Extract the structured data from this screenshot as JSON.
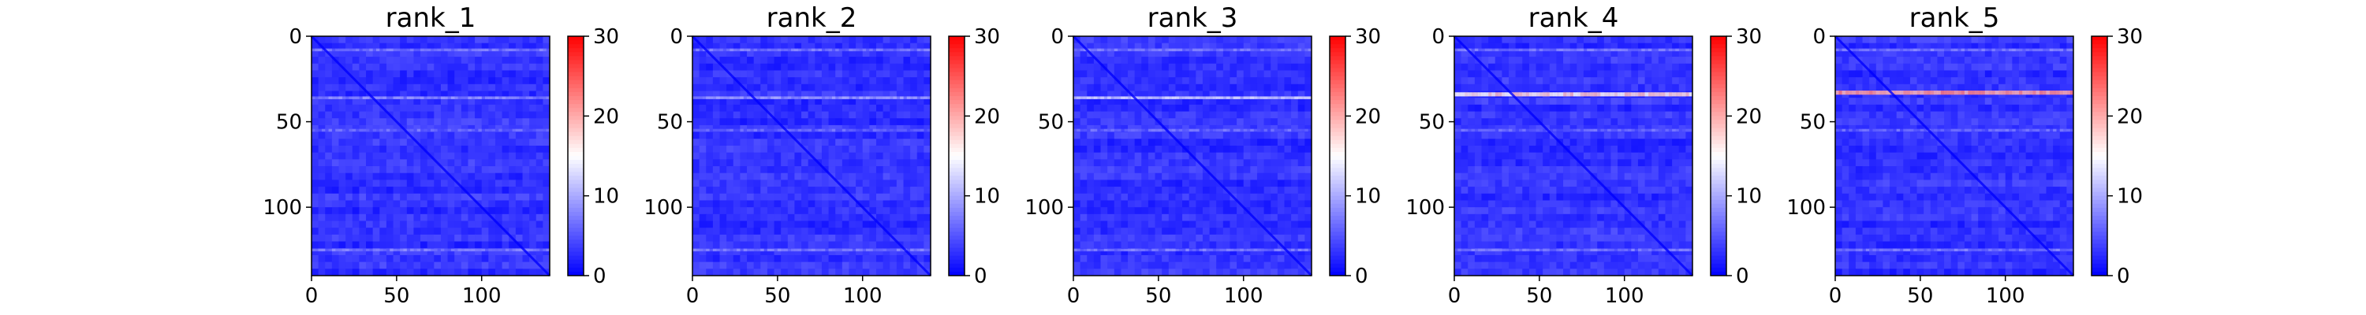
{
  "chart_data": [
    {
      "type": "heatmap",
      "title": "rank_1",
      "size": 140,
      "xlim": [
        0,
        140
      ],
      "ylim": [
        140,
        0
      ],
      "xticks": [
        0,
        50,
        100
      ],
      "yticks": [
        0,
        50,
        100
      ],
      "colorbar": {
        "min": 0,
        "max": 30,
        "ticks": [
          0,
          10,
          20,
          30
        ],
        "colormap": "bwr"
      },
      "typical_value": 3,
      "diagonal_value": 0,
      "bright_rows": [
        {
          "row": 8,
          "value": 7
        },
        {
          "row": 36,
          "value": 8
        },
        {
          "row": 55,
          "value": 6
        },
        {
          "row": 125,
          "value": 7
        }
      ]
    },
    {
      "type": "heatmap",
      "title": "rank_2",
      "size": 140,
      "xlim": [
        0,
        140
      ],
      "ylim": [
        140,
        0
      ],
      "xticks": [
        0,
        50,
        100
      ],
      "yticks": [
        0,
        50,
        100
      ],
      "colorbar": {
        "min": 0,
        "max": 30,
        "ticks": [
          0,
          10,
          20,
          30
        ],
        "colormap": "bwr"
      },
      "typical_value": 3,
      "diagonal_value": 0,
      "bright_rows": [
        {
          "row": 8,
          "value": 7
        },
        {
          "row": 36,
          "value": 9
        },
        {
          "row": 55,
          "value": 6
        },
        {
          "row": 125,
          "value": 7
        }
      ]
    },
    {
      "type": "heatmap",
      "title": "rank_3",
      "size": 140,
      "xlim": [
        0,
        140
      ],
      "ylim": [
        140,
        0
      ],
      "xticks": [
        0,
        50,
        100
      ],
      "yticks": [
        0,
        50,
        100
      ],
      "colorbar": {
        "min": 0,
        "max": 30,
        "ticks": [
          0,
          10,
          20,
          30
        ],
        "colormap": "bwr"
      },
      "typical_value": 3,
      "diagonal_value": 0,
      "bright_rows": [
        {
          "row": 8,
          "value": 7
        },
        {
          "row": 36,
          "value": 12
        },
        {
          "row": 55,
          "value": 6
        },
        {
          "row": 125,
          "value": 7
        }
      ]
    },
    {
      "type": "heatmap",
      "title": "rank_4",
      "size": 140,
      "xlim": [
        0,
        140
      ],
      "ylim": [
        140,
        0
      ],
      "xticks": [
        0,
        50,
        100
      ],
      "yticks": [
        0,
        50,
        100
      ],
      "colorbar": {
        "min": 0,
        "max": 30,
        "ticks": [
          0,
          10,
          20,
          30
        ],
        "colormap": "bwr"
      },
      "typical_value": 3,
      "diagonal_value": 0,
      "bright_rows": [
        {
          "row": 8,
          "value": 7
        },
        {
          "row": 34,
          "value": 17
        },
        {
          "row": 55,
          "value": 6
        },
        {
          "row": 125,
          "value": 7
        }
      ]
    },
    {
      "type": "heatmap",
      "title": "rank_5",
      "size": 140,
      "xlim": [
        0,
        140
      ],
      "ylim": [
        140,
        0
      ],
      "xticks": [
        0,
        50,
        100
      ],
      "yticks": [
        0,
        50,
        100
      ],
      "colorbar": {
        "min": 0,
        "max": 30,
        "ticks": [
          0,
          10,
          20,
          30
        ],
        "colormap": "bwr"
      },
      "typical_value": 3,
      "diagonal_value": 0,
      "bright_rows": [
        {
          "row": 8,
          "value": 7
        },
        {
          "row": 33,
          "value": 21
        },
        {
          "row": 55,
          "value": 6
        },
        {
          "row": 125,
          "value": 7
        }
      ]
    }
  ]
}
